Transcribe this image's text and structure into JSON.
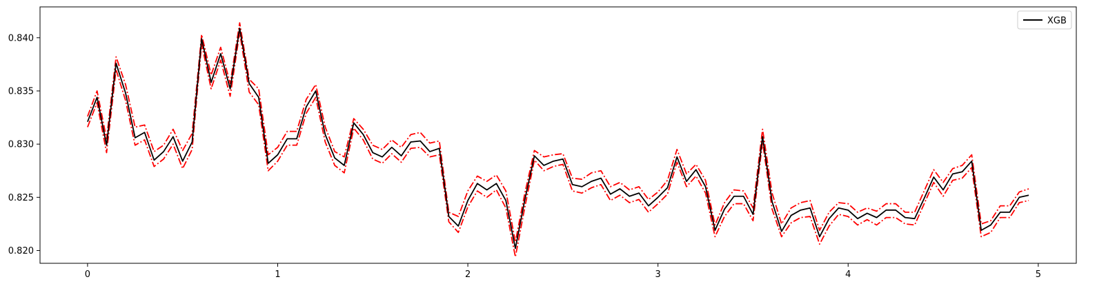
{
  "chart_data": {
    "type": "line",
    "title": "",
    "xlabel": "",
    "ylabel": "",
    "xlim": [
      -0.25,
      5.2
    ],
    "ylim": [
      0.8188,
      0.8429
    ],
    "xticks": [
      0,
      1,
      2,
      3,
      4,
      5
    ],
    "xtick_labels": [
      "0",
      "1",
      "2",
      "3",
      "4",
      "5"
    ],
    "yticks": [
      0.82,
      0.825,
      0.83,
      0.835,
      0.84
    ],
    "ytick_labels": [
      "0.820",
      "0.825",
      "0.830",
      "0.835",
      "0.840"
    ],
    "grid": false,
    "legend": {
      "position": "top-right",
      "entries": [
        "XGB"
      ]
    },
    "colors": {
      "main": "#000000",
      "band": "#ff0000"
    },
    "x_start": 0,
    "x_step": 0.05,
    "series": [
      {
        "name": "XGB",
        "style": "solid",
        "values": [
          0.8321,
          0.8344,
          0.8299,
          0.8376,
          0.8348,
          0.8306,
          0.8311,
          0.8285,
          0.8293,
          0.8307,
          0.8284,
          0.8302,
          0.8399,
          0.8358,
          0.8385,
          0.8352,
          0.8409,
          0.8357,
          0.8344,
          0.8282,
          0.829,
          0.8305,
          0.8305,
          0.8335,
          0.835,
          0.8309,
          0.8287,
          0.828,
          0.832,
          0.8309,
          0.8292,
          0.8288,
          0.8297,
          0.8289,
          0.8302,
          0.8303,
          0.8293,
          0.8296,
          0.8232,
          0.8223,
          0.8247,
          0.8263,
          0.8257,
          0.8263,
          0.8247,
          0.8202,
          0.8248,
          0.8289,
          0.828,
          0.8284,
          0.8286,
          0.8262,
          0.826,
          0.8265,
          0.8268,
          0.8253,
          0.8258,
          0.8251,
          0.8254,
          0.8242,
          0.825,
          0.8259,
          0.8288,
          0.8265,
          0.8276,
          0.826,
          0.8219,
          0.8239,
          0.8251,
          0.8251,
          0.8234,
          0.8307,
          0.8246,
          0.8218,
          0.8233,
          0.8238,
          0.824,
          0.8213,
          0.823,
          0.824,
          0.8238,
          0.823,
          0.8235,
          0.8231,
          0.8238,
          0.8238,
          0.8231,
          0.823,
          0.8249,
          0.8269,
          0.8257,
          0.8272,
          0.8274,
          0.8284,
          0.8219,
          0.8224,
          0.8236,
          0.8236,
          0.825,
          0.8252
        ]
      },
      {
        "name": "",
        "style": "dashdot",
        "values": [
          0.8326,
          0.835,
          0.8305,
          0.8382,
          0.8356,
          0.8316,
          0.8318,
          0.8293,
          0.8299,
          0.8314,
          0.8294,
          0.831,
          0.8403,
          0.8365,
          0.8391,
          0.8357,
          0.8414,
          0.8361,
          0.8352,
          0.829,
          0.8297,
          0.8312,
          0.8312,
          0.8342,
          0.8356,
          0.8316,
          0.8293,
          0.8288,
          0.8324,
          0.8314,
          0.8299,
          0.8295,
          0.8304,
          0.8297,
          0.8309,
          0.8311,
          0.8301,
          0.8303,
          0.8236,
          0.8232,
          0.8256,
          0.827,
          0.8265,
          0.8271,
          0.8256,
          0.8208,
          0.8254,
          0.8294,
          0.8288,
          0.829,
          0.8291,
          0.8268,
          0.8267,
          0.8273,
          0.8275,
          0.826,
          0.8264,
          0.8257,
          0.826,
          0.8248,
          0.8255,
          0.8266,
          0.8295,
          0.8272,
          0.8281,
          0.8266,
          0.8224,
          0.8245,
          0.8257,
          0.8256,
          0.824,
          0.8314,
          0.8254,
          0.8225,
          0.824,
          0.8245,
          0.8247,
          0.8219,
          0.8236,
          0.8245,
          0.8244,
          0.8236,
          0.824,
          0.8237,
          0.8244,
          0.8244,
          0.8236,
          0.8236,
          0.8256,
          0.8276,
          0.8264,
          0.8277,
          0.828,
          0.829,
          0.8225,
          0.8228,
          0.8242,
          0.8242,
          0.8255,
          0.8258
        ]
      },
      {
        "name": "",
        "style": "dashdot",
        "values": [
          0.8316,
          0.8339,
          0.8292,
          0.837,
          0.8341,
          0.8299,
          0.8304,
          0.8279,
          0.8286,
          0.83,
          0.8277,
          0.8295,
          0.8394,
          0.8352,
          0.8379,
          0.8345,
          0.8405,
          0.8349,
          0.8337,
          0.8275,
          0.8284,
          0.8299,
          0.8299,
          0.8329,
          0.8344,
          0.8302,
          0.828,
          0.8273,
          0.8315,
          0.8304,
          0.8286,
          0.8282,
          0.8291,
          0.8283,
          0.8296,
          0.8297,
          0.8288,
          0.829,
          0.8227,
          0.8217,
          0.8241,
          0.8256,
          0.825,
          0.8257,
          0.824,
          0.8194,
          0.8241,
          0.8285,
          0.8275,
          0.8279,
          0.8281,
          0.8256,
          0.8254,
          0.8259,
          0.8262,
          0.8247,
          0.8252,
          0.8245,
          0.8248,
          0.8236,
          0.8244,
          0.8253,
          0.8283,
          0.826,
          0.827,
          0.8254,
          0.8213,
          0.8232,
          0.8244,
          0.8244,
          0.8228,
          0.8302,
          0.8239,
          0.8213,
          0.8226,
          0.8231,
          0.8232,
          0.8206,
          0.8223,
          0.8234,
          0.8232,
          0.8224,
          0.8229,
          0.8224,
          0.8231,
          0.8231,
          0.8225,
          0.8224,
          0.8244,
          0.8264,
          0.8251,
          0.8266,
          0.8268,
          0.8278,
          0.8213,
          0.8217,
          0.8231,
          0.8231,
          0.8245,
          0.8247
        ]
      }
    ]
  }
}
